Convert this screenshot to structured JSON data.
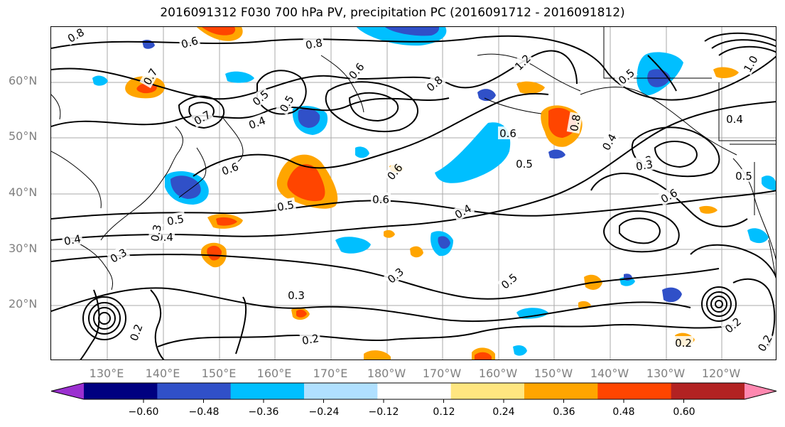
{
  "title": "2016091312 F030 700 hPa PV, precipitation PC (2016091712 - 2016091812)",
  "chart_data": {
    "type": "contour-map",
    "title": "2016091312 F030 700 hPa PV, precipitation PC (2016091712 - 2016091812)",
    "lat_ticks": [
      "60°N",
      "50°N",
      "40°N",
      "30°N",
      "20°N"
    ],
    "lon_ticks": [
      "130°E",
      "140°E",
      "150°E",
      "160°E",
      "170°E",
      "180°W",
      "170°W",
      "160°W",
      "150°W",
      "140°W",
      "130°W",
      "120°W"
    ],
    "colorbar": {
      "ticks": [
        "−0.60",
        "−0.48",
        "−0.36",
        "−0.24",
        "−0.12",
        "0.12",
        "0.24",
        "0.36",
        "0.48",
        "0.60"
      ],
      "colors": [
        "#9b30d0",
        "#000080",
        "#3050c8",
        "#00bfff",
        "#b0e0ff",
        "#ffffff",
        "#ffe680",
        "#ffa500",
        "#ff4500",
        "#b22222",
        "#ff88b0"
      ]
    },
    "contour_labels": [
      "0.8",
      "0.6",
      "0.8",
      "0.6",
      "1.2",
      "0.8",
      "0.5",
      "1.0",
      "0.7",
      "0.7",
      "0.5",
      "0.4",
      "0.5",
      "0.6",
      "0.6",
      "0.5",
      "0.6",
      "0.6",
      "0.4",
      "0.8",
      "0.4",
      "0.3",
      "0.4",
      "0.6",
      "0.5",
      "0.5",
      "0.3",
      "0.4",
      "0.4",
      "0.3",
      "0.3",
      "0.3",
      "0.5",
      "0.2",
      "0.3",
      "0.2",
      "0.2",
      "0.2",
      "0.2",
      "0.5"
    ],
    "grid": true
  }
}
